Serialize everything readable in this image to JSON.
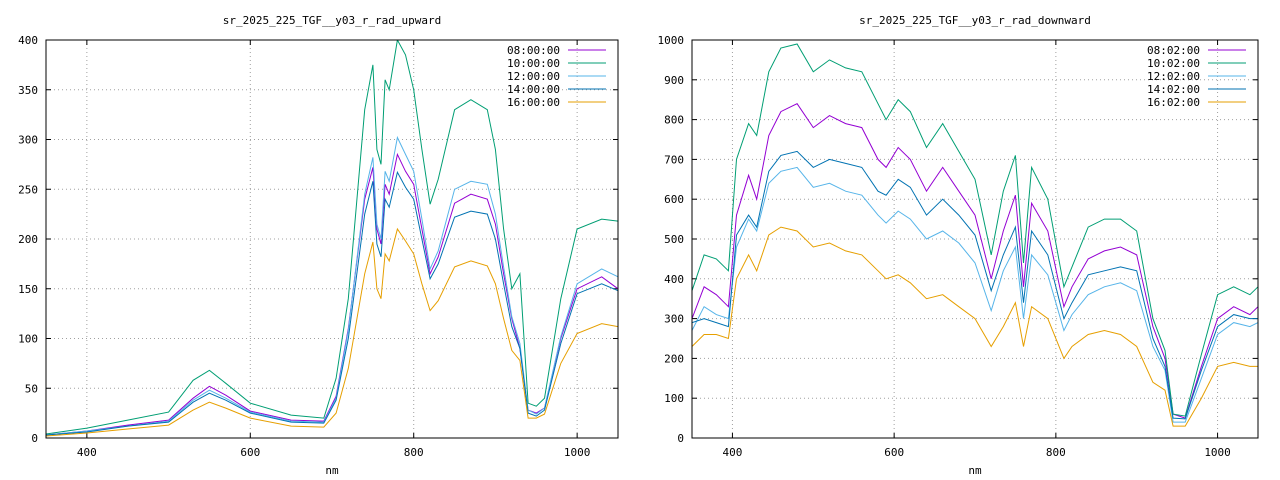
{
  "chart_data": [
    {
      "type": "line",
      "title": "sr_2025_225_TGF__y03_r_rad_upward",
      "xlabel": "nm",
      "ylabel": "",
      "xlim": [
        350,
        1050
      ],
      "ylim": [
        0,
        400
      ],
      "xticks": [
        400,
        600,
        800,
        1000
      ],
      "yticks": [
        0,
        50,
        100,
        150,
        200,
        250,
        300,
        350,
        400
      ],
      "grid": true,
      "legend": "top-right",
      "series": [
        {
          "name": "08:00:00",
          "color": "#9400d3",
          "x": [
            350,
            400,
            450,
            500,
            530,
            550,
            570,
            600,
            650,
            690,
            705,
            720,
            740,
            750,
            755,
            760,
            765,
            770,
            780,
            790,
            800,
            810,
            820,
            830,
            850,
            870,
            890,
            900,
            910,
            920,
            930,
            940,
            950,
            960,
            980,
            1000,
            1030,
            1050
          ],
          "y": [
            3,
            7,
            13,
            18,
            40,
            52,
            43,
            27,
            18,
            17,
            42,
            110,
            240,
            272,
            210,
            195,
            255,
            245,
            285,
            268,
            255,
            210,
            165,
            182,
            236,
            245,
            240,
            215,
            165,
            120,
            90,
            28,
            25,
            30,
            100,
            150,
            162,
            150
          ]
        },
        {
          "name": "10:00:00",
          "color": "#009e73",
          "x": [
            350,
            400,
            450,
            500,
            530,
            550,
            570,
            600,
            650,
            690,
            705,
            720,
            740,
            750,
            755,
            760,
            765,
            770,
            780,
            790,
            800,
            810,
            820,
            830,
            850,
            870,
            890,
            900,
            910,
            920,
            930,
            940,
            950,
            960,
            980,
            1000,
            1030,
            1050
          ],
          "y": [
            4,
            10,
            18,
            26,
            58,
            68,
            55,
            35,
            23,
            20,
            60,
            140,
            330,
            375,
            290,
            275,
            360,
            350,
            400,
            385,
            350,
            290,
            235,
            260,
            330,
            340,
            330,
            290,
            210,
            150,
            165,
            35,
            32,
            40,
            140,
            210,
            220,
            218
          ]
        },
        {
          "name": "12:00:00",
          "color": "#56b4e9",
          "x": [
            350,
            400,
            450,
            500,
            530,
            550,
            570,
            600,
            650,
            690,
            705,
            720,
            740,
            750,
            755,
            760,
            765,
            770,
            780,
            790,
            800,
            810,
            820,
            830,
            850,
            870,
            890,
            900,
            910,
            920,
            930,
            940,
            950,
            960,
            980,
            1000,
            1030,
            1050
          ],
          "y": [
            3,
            7,
            12,
            17,
            38,
            48,
            40,
            26,
            17,
            16,
            40,
            108,
            245,
            282,
            215,
            200,
            268,
            258,
            302,
            285,
            268,
            220,
            170,
            188,
            250,
            258,
            255,
            225,
            172,
            122,
            95,
            28,
            24,
            30,
            102,
            155,
            170,
            162
          ]
        },
        {
          "name": "14:00:00",
          "color": "#0072b2",
          "x": [
            350,
            400,
            450,
            500,
            530,
            550,
            570,
            600,
            650,
            690,
            705,
            720,
            740,
            750,
            755,
            760,
            765,
            770,
            780,
            790,
            800,
            810,
            820,
            830,
            850,
            870,
            890,
            900,
            910,
            920,
            930,
            940,
            950,
            960,
            980,
            1000,
            1030,
            1050
          ],
          "y": [
            3,
            6,
            12,
            16,
            36,
            45,
            38,
            25,
            16,
            15,
            38,
            100,
            225,
            258,
            195,
            182,
            240,
            232,
            267,
            252,
            240,
            200,
            160,
            175,
            222,
            228,
            225,
            200,
            155,
            112,
            90,
            25,
            22,
            28,
            95,
            145,
            155,
            148
          ]
        },
        {
          "name": "16:00:00",
          "color": "#e69f00",
          "x": [
            350,
            400,
            450,
            500,
            530,
            550,
            570,
            600,
            650,
            690,
            705,
            720,
            740,
            750,
            755,
            760,
            765,
            770,
            780,
            790,
            800,
            810,
            820,
            830,
            850,
            870,
            890,
            900,
            910,
            920,
            930,
            940,
            950,
            960,
            980,
            1000,
            1030,
            1050
          ],
          "y": [
            2,
            5,
            9,
            13,
            28,
            36,
            30,
            20,
            12,
            11,
            25,
            70,
            165,
            197,
            150,
            140,
            185,
            178,
            210,
            198,
            185,
            155,
            128,
            138,
            172,
            178,
            173,
            155,
            120,
            88,
            78,
            20,
            20,
            24,
            75,
            105,
            115,
            112
          ]
        }
      ]
    },
    {
      "type": "line",
      "title": "sr_2025_225_TGF__y03_r_rad_downward",
      "xlabel": "nm",
      "ylabel": "",
      "xlim": [
        350,
        1050
      ],
      "ylim": [
        0,
        1000
      ],
      "xticks": [
        400,
        600,
        800,
        1000
      ],
      "yticks": [
        0,
        100,
        200,
        300,
        400,
        500,
        600,
        700,
        800,
        900,
        1000
      ],
      "grid": true,
      "legend": "top-right",
      "series": [
        {
          "name": "08:02:00",
          "color": "#9400d3",
          "x": [
            350,
            365,
            380,
            395,
            405,
            420,
            430,
            445,
            460,
            480,
            500,
            520,
            540,
            560,
            580,
            590,
            605,
            620,
            640,
            660,
            680,
            700,
            720,
            735,
            750,
            760,
            770,
            790,
            810,
            820,
            840,
            860,
            880,
            900,
            920,
            935,
            945,
            960,
            980,
            1000,
            1020,
            1040,
            1050
          ],
          "y": [
            300,
            380,
            360,
            330,
            560,
            660,
            600,
            760,
            820,
            840,
            780,
            810,
            790,
            780,
            700,
            680,
            730,
            700,
            620,
            680,
            620,
            560,
            400,
            520,
            610,
            380,
            590,
            520,
            330,
            380,
            450,
            470,
            480,
            460,
            280,
            200,
            60,
            50,
            180,
            300,
            330,
            310,
            330
          ]
        },
        {
          "name": "10:02:00",
          "color": "#009e73",
          "x": [
            350,
            365,
            380,
            395,
            405,
            420,
            430,
            445,
            460,
            480,
            500,
            520,
            540,
            560,
            580,
            590,
            605,
            620,
            640,
            660,
            680,
            700,
            720,
            735,
            750,
            760,
            770,
            790,
            810,
            820,
            840,
            860,
            880,
            900,
            920,
            935,
            945,
            960,
            980,
            1000,
            1020,
            1040,
            1050
          ],
          "y": [
            370,
            460,
            450,
            420,
            700,
            790,
            760,
            920,
            980,
            990,
            920,
            950,
            930,
            920,
            840,
            800,
            850,
            820,
            730,
            790,
            720,
            650,
            460,
            620,
            710,
            440,
            680,
            600,
            380,
            430,
            530,
            550,
            550,
            520,
            300,
            220,
            60,
            55,
            210,
            360,
            380,
            360,
            380
          ]
        },
        {
          "name": "12:02:00",
          "color": "#56b4e9",
          "x": [
            350,
            365,
            380,
            395,
            405,
            420,
            430,
            445,
            460,
            480,
            500,
            520,
            540,
            560,
            580,
            590,
            605,
            620,
            640,
            660,
            680,
            700,
            720,
            735,
            750,
            760,
            770,
            790,
            810,
            820,
            840,
            860,
            880,
            900,
            920,
            935,
            945,
            960,
            980,
            1000,
            1020,
            1040,
            1050
          ],
          "y": [
            270,
            330,
            310,
            300,
            480,
            550,
            520,
            640,
            670,
            680,
            630,
            640,
            620,
            610,
            560,
            540,
            570,
            550,
            500,
            520,
            490,
            440,
            320,
            420,
            480,
            300,
            460,
            410,
            270,
            310,
            360,
            380,
            390,
            370,
            230,
            170,
            40,
            40,
            150,
            260,
            290,
            280,
            290
          ]
        },
        {
          "name": "14:02:00",
          "color": "#0072b2",
          "x": [
            350,
            365,
            380,
            395,
            405,
            420,
            430,
            445,
            460,
            480,
            500,
            520,
            540,
            560,
            580,
            590,
            605,
            620,
            640,
            660,
            680,
            700,
            720,
            735,
            750,
            760,
            770,
            790,
            810,
            820,
            840,
            860,
            880,
            900,
            920,
            935,
            945,
            960,
            980,
            1000,
            1020,
            1040,
            1050
          ],
          "y": [
            290,
            300,
            290,
            280,
            510,
            560,
            530,
            670,
            710,
            720,
            680,
            700,
            690,
            680,
            620,
            610,
            650,
            630,
            560,
            600,
            560,
            510,
            370,
            460,
            530,
            340,
            520,
            460,
            300,
            340,
            410,
            420,
            430,
            420,
            250,
            180,
            50,
            48,
            170,
            280,
            310,
            300,
            300
          ]
        },
        {
          "name": "16:02:00",
          "color": "#e69f00",
          "x": [
            350,
            365,
            380,
            395,
            405,
            420,
            430,
            445,
            460,
            480,
            500,
            520,
            540,
            560,
            580,
            590,
            605,
            620,
            640,
            660,
            680,
            700,
            720,
            735,
            750,
            760,
            770,
            790,
            810,
            820,
            840,
            860,
            880,
            900,
            920,
            935,
            945,
            960,
            980,
            1000,
            1020,
            1040,
            1050
          ],
          "y": [
            230,
            260,
            260,
            250,
            400,
            460,
            420,
            510,
            530,
            520,
            480,
            490,
            470,
            460,
            420,
            400,
            410,
            390,
            350,
            360,
            330,
            300,
            230,
            280,
            340,
            230,
            330,
            300,
            200,
            230,
            260,
            270,
            260,
            230,
            140,
            120,
            30,
            30,
            100,
            180,
            190,
            180,
            180
          ]
        }
      ]
    }
  ]
}
